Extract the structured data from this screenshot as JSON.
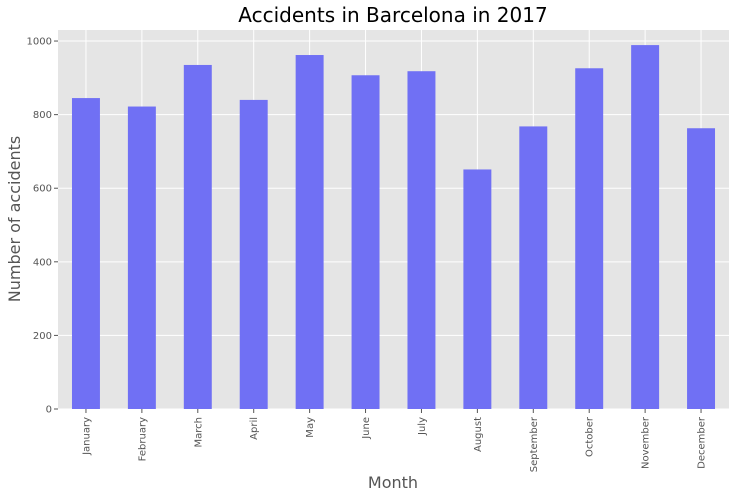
{
  "chart_data": {
    "type": "bar",
    "title": "Accidents in Barcelona in 2017",
    "xlabel": "Month",
    "ylabel": "Number of accidents",
    "categories": [
      "January",
      "February",
      "March",
      "April",
      "May",
      "June",
      "July",
      "August",
      "September",
      "October",
      "November",
      "December"
    ],
    "values": [
      845,
      822,
      935,
      840,
      962,
      907,
      918,
      651,
      768,
      926,
      989,
      763
    ],
    "ylim": [
      0,
      1030
    ],
    "yticks": [
      0,
      200,
      400,
      600,
      800,
      1000
    ],
    "grid": true,
    "bar_color": "#7070f4",
    "background_color": "#e5e5e5",
    "grid_color": "#ffffff"
  }
}
